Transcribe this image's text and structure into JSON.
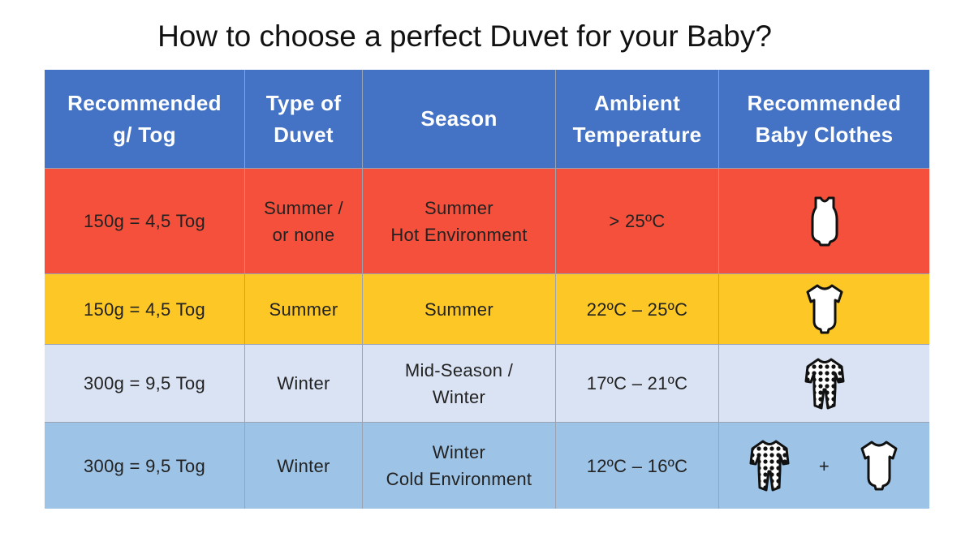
{
  "title": "How to choose a perfect Duvet for your Baby?",
  "table": {
    "header": [
      "Recommended\ng/ Tog",
      "Type of\nDuvet",
      "Season",
      "Ambient\nTemperature",
      "Recommended\nBaby Clothes"
    ],
    "rows": [
      [
        "150g = 4,5 Tog",
        "Summer /\nor none",
        "Summer\nHot Environment",
        "> 25ºC"
      ],
      [
        "150g = 4,5 Tog",
        "Summer",
        "Summer",
        "22ºC –  25ºC"
      ],
      [
        "300g = 9,5 Tog",
        "Winter",
        "Mid-Season /\nWinter",
        "17ºC – 21ºC"
      ],
      [
        "300g = 9,5 Tog",
        "Winter",
        "Winter\nCold Environment",
        "12ºC – 16ºC"
      ]
    ],
    "clothes_separator": "+"
  }
}
